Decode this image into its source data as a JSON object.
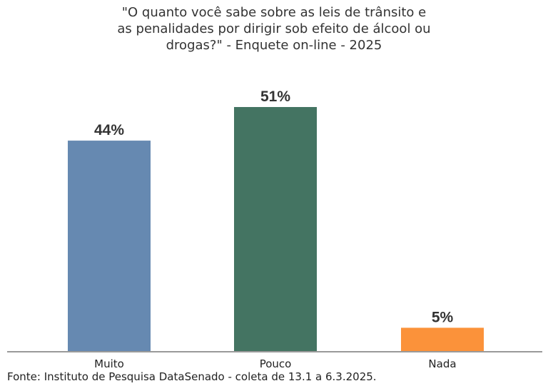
{
  "chart_data": {
    "type": "bar",
    "title_lines": [
      "\"O quanto você sabe sobre as leis de trânsito e",
      "as penalidades por dirigir sob efeito de álcool ou",
      "drogas?\" - Enquete on-line - 2025"
    ],
    "categories": [
      "Muito",
      "Pouco",
      "Nada"
    ],
    "values": [
      44,
      51,
      5
    ],
    "value_labels": [
      "44%",
      "51%",
      "5%"
    ],
    "colors": [
      "#6689b1",
      "#447462",
      "#fb923a"
    ],
    "unit": "%",
    "ylim": [
      0,
      51
    ],
    "grid": false,
    "legend": "none",
    "xlabel": "",
    "ylabel": ""
  },
  "source": "Fonte: Instituto de Pesquisa DataSenado - coleta de 13.1 a 6.3.2025."
}
